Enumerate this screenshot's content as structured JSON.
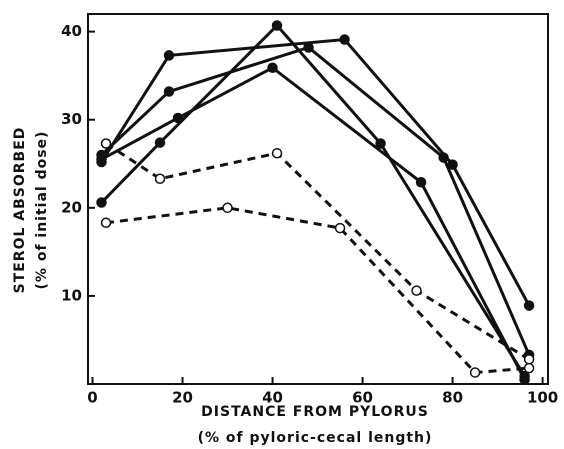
{
  "chart_data": {
    "type": "line",
    "x_label": "DISTANCE FROM PYLORUS",
    "x_sublabel": "(% of pyloric-cecal length)",
    "y_label": "STEROL ABSORBED",
    "y_sublabel": "(% of initial dose)",
    "xlim": [
      -1,
      101.2
    ],
    "xticks": [
      0,
      20,
      40,
      60,
      80,
      100
    ],
    "ylim": [
      0,
      42
    ],
    "yticks": [
      10,
      20,
      30,
      40
    ],
    "series": [
      {
        "color": "#111111",
        "style": "solid",
        "marker": "filled",
        "x": [
          2,
          17,
          56,
          80,
          97
        ],
        "values": [
          25.2,
          37.3,
          39.1,
          24.9,
          8.9
        ]
      },
      {
        "color": "#111111",
        "style": "solid",
        "marker": "filled",
        "x": [
          2,
          15,
          41,
          64,
          96
        ],
        "values": [
          20.6,
          27.4,
          40.7,
          27.3,
          0.9
        ]
      },
      {
        "color": "#111111",
        "style": "solid",
        "marker": "filled",
        "x": [
          2,
          17,
          48,
          78,
          97
        ],
        "values": [
          26,
          33.2,
          38.2,
          25.7,
          3.3
        ]
      },
      {
        "color": "#111111",
        "style": "solid",
        "marker": "filled",
        "x": [
          2,
          19,
          40,
          73,
          96
        ],
        "values": [
          25.5,
          30.2,
          35.9,
          22.9,
          0.5
        ]
      },
      {
        "color": "#111111",
        "style": "dashed",
        "marker": "open",
        "x": [
          3,
          15,
          41,
          72,
          97
        ],
        "values": [
          27.3,
          23.3,
          26.2,
          10.6,
          2.8
        ]
      },
      {
        "color": "#111111",
        "style": "dashed",
        "marker": "open",
        "x": [
          3,
          30,
          55,
          85,
          97
        ],
        "values": [
          18.3,
          20,
          17.7,
          1.3,
          1.8
        ]
      }
    ]
  }
}
